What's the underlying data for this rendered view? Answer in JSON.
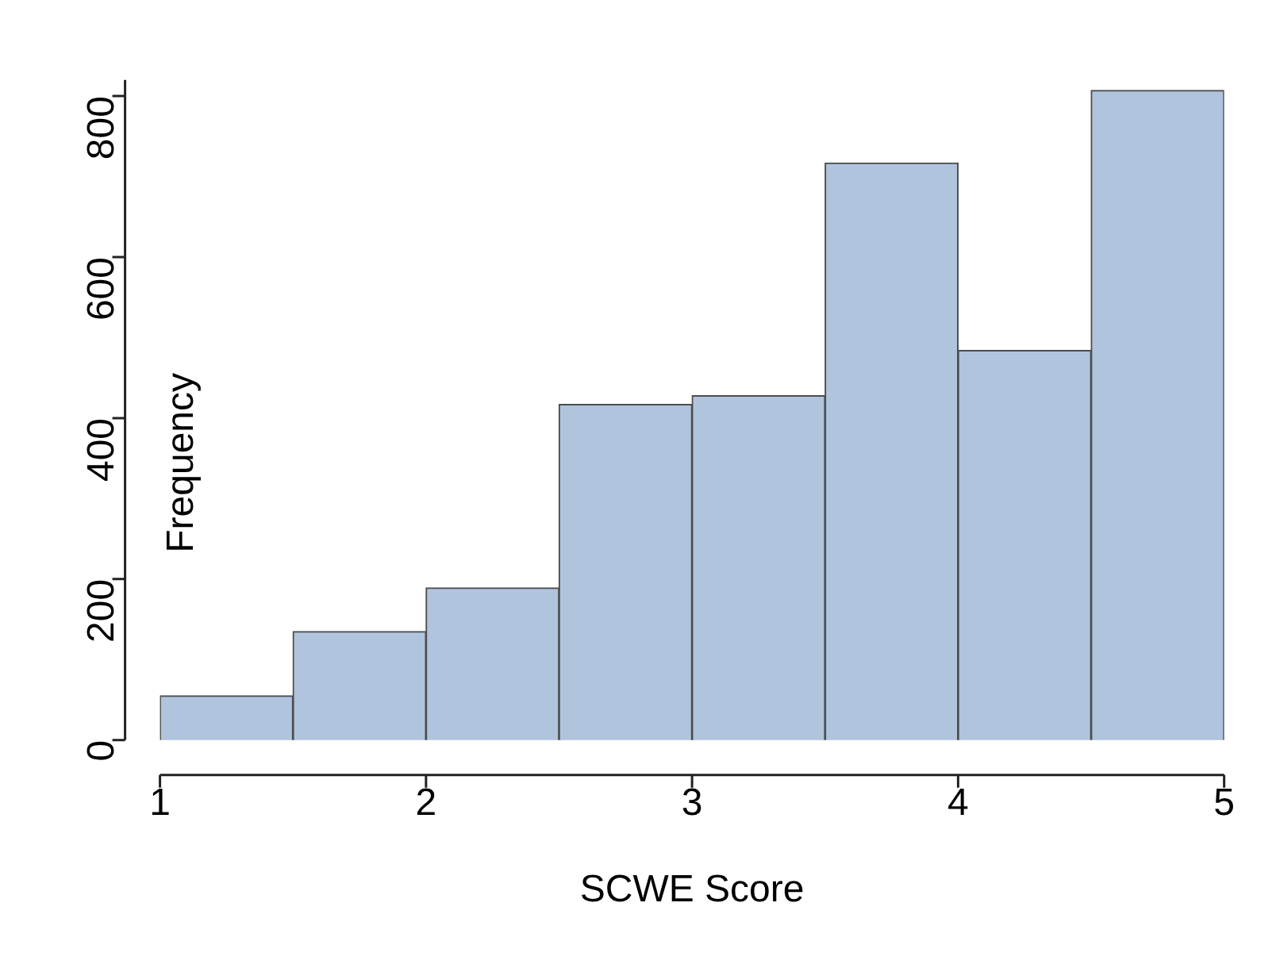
{
  "chart_data": {
    "type": "histogram",
    "xlabel": "SCWE Score",
    "ylabel": "Frequency",
    "bins": [
      1,
      1.5,
      2,
      2.5,
      3,
      3.5,
      4,
      4.5,
      5
    ],
    "values": [
      55,
      135,
      189,
      417,
      428,
      717,
      484,
      807
    ],
    "color": "#b0c4de",
    "xlim": [
      1,
      5
    ],
    "xticks": [
      1,
      2,
      3,
      4,
      5
    ],
    "ylim": [
      0,
      820
    ],
    "yticks": [
      0,
      200,
      400,
      600,
      800
    ],
    "grid": false,
    "legend": false
  }
}
